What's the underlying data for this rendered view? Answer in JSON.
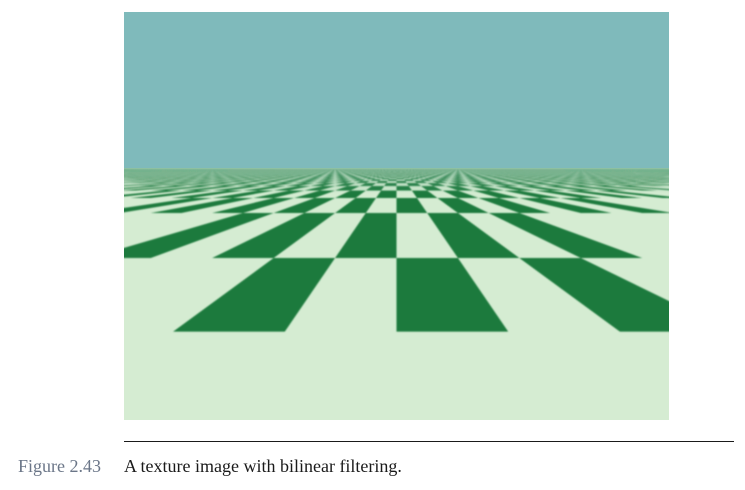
{
  "figure": {
    "label": "Figure 2.43",
    "caption": "A texture image with bilinear filtering."
  },
  "scene": {
    "sky_color": "#7fbabb",
    "checker_dark_color": "#1e7a3c",
    "checker_light_color": "#d5ecd2"
  }
}
